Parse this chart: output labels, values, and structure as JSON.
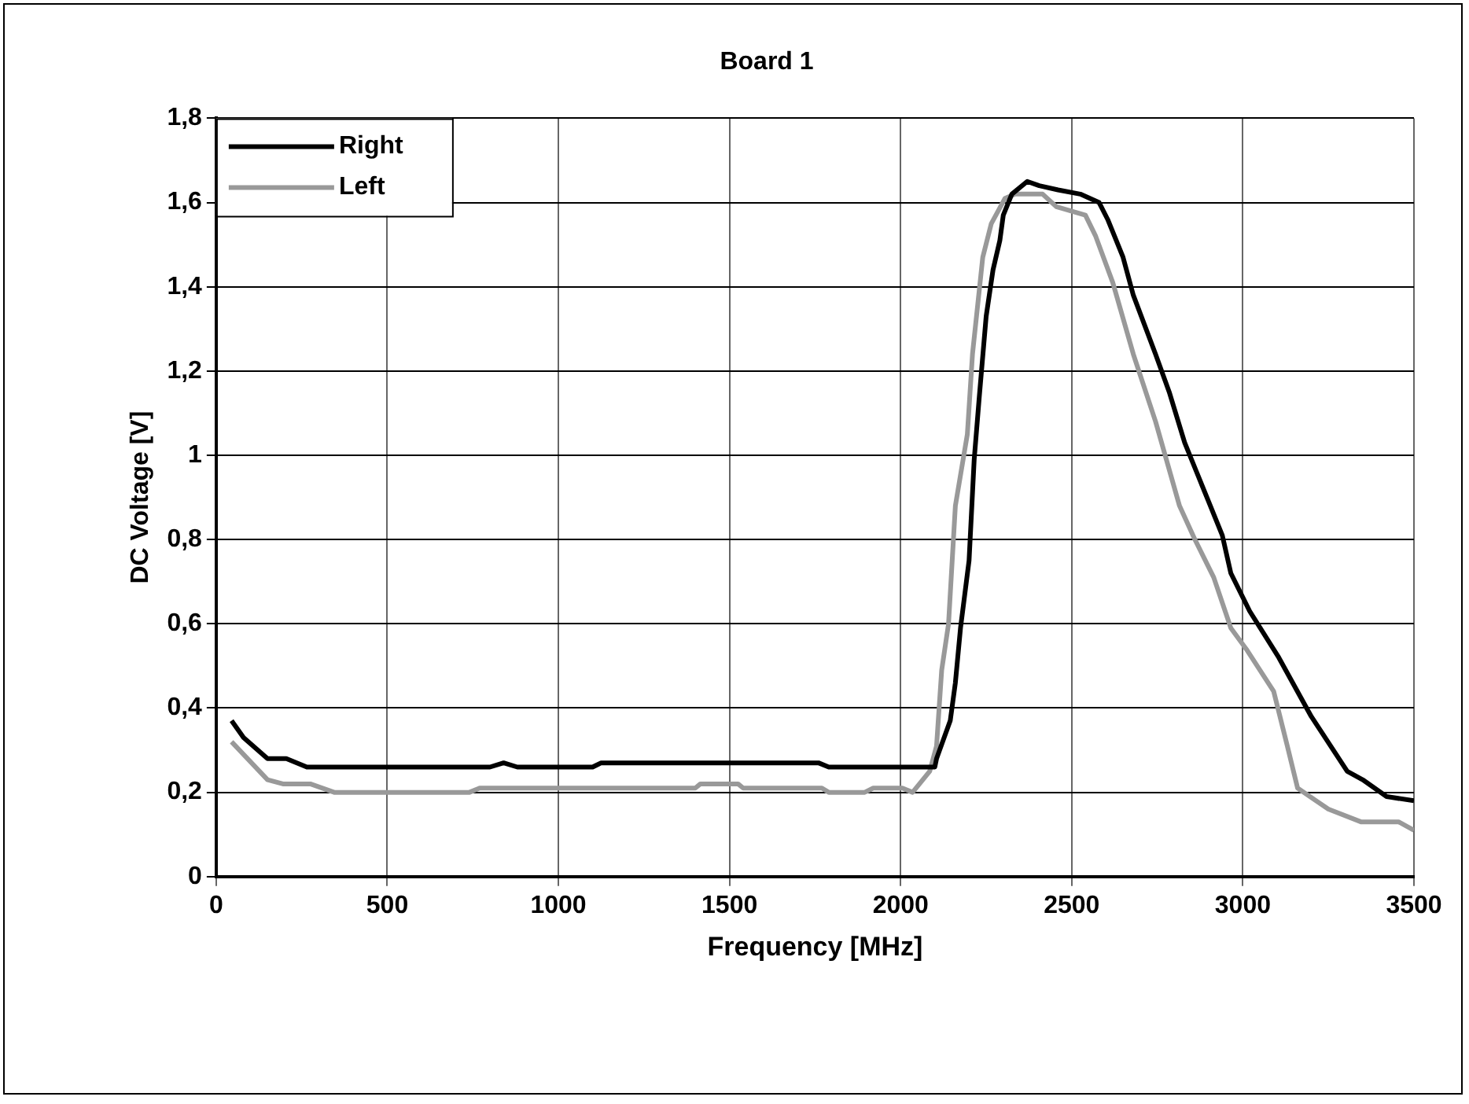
{
  "chart_data": {
    "type": "line",
    "title": "Board 1",
    "xlabel": "Frequency [MHz]",
    "ylabel": "DC Voltage [V]",
    "xlim": [
      0,
      3500
    ],
    "xticks": [
      0,
      500,
      1000,
      1500,
      2000,
      2500,
      3000,
      3500
    ],
    "ylim": [
      0,
      1.8
    ],
    "yticks": [
      0,
      {
        "value": 0.2,
        "label": "0,2"
      },
      {
        "value": 0.4,
        "label": "0,4"
      },
      {
        "value": 0.6,
        "label": "0,6"
      },
      {
        "value": 0.8,
        "label": "0,8"
      },
      1,
      {
        "value": 1.2,
        "label": "1,2"
      },
      {
        "value": 1.4,
        "label": "1,4"
      },
      {
        "value": 1.6,
        "label": "1,6"
      },
      {
        "value": 1.8,
        "label": "1,8"
      }
    ],
    "grid": true,
    "legend": "top left",
    "marker": "none",
    "line_style": "solid",
    "series": [
      {
        "name": "Right",
        "color": "#000000",
        "x": [
          45,
          80,
          150,
          205,
          265,
          800,
          840,
          880,
          1100,
          1125,
          1760,
          1790,
          2045,
          2100,
          2105,
          2145,
          2160,
          2175,
          2200,
          2215,
          2230,
          2250,
          2270,
          2290,
          2300,
          2325,
          2370,
          2405,
          2460,
          2525,
          2580,
          2605,
          2650,
          2680,
          2745,
          2785,
          2830,
          2900,
          2940,
          2965,
          3020,
          3105,
          3200,
          3305,
          3350,
          3420,
          3500
        ],
        "values": [
          0.37,
          0.33,
          0.28,
          0.28,
          0.26,
          0.26,
          0.27,
          0.26,
          0.26,
          0.27,
          0.27,
          0.26,
          0.26,
          0.26,
          0.28,
          0.37,
          0.46,
          0.59,
          0.75,
          0.99,
          1.14,
          1.33,
          1.44,
          1.51,
          1.57,
          1.62,
          1.65,
          1.64,
          1.63,
          1.62,
          1.6,
          1.56,
          1.47,
          1.38,
          1.24,
          1.15,
          1.03,
          0.89,
          0.81,
          0.72,
          0.63,
          0.52,
          0.38,
          0.25,
          0.23,
          0.19,
          0.18
        ]
      },
      {
        "name": "Left",
        "color": "#999999",
        "x": [
          45,
          150,
          195,
          275,
          345,
          740,
          770,
          1400,
          1415,
          1525,
          1540,
          1770,
          1790,
          1895,
          1920,
          2005,
          2035,
          2085,
          2105,
          2120,
          2140,
          2160,
          2195,
          2210,
          2240,
          2265,
          2305,
          2335,
          2415,
          2455,
          2540,
          2570,
          2620,
          2680,
          2745,
          2815,
          2860,
          2915,
          2965,
          3010,
          3090,
          3130,
          3160,
          3250,
          3345,
          3455,
          3500
        ],
        "values": [
          0.32,
          0.23,
          0.22,
          0.22,
          0.2,
          0.2,
          0.21,
          0.21,
          0.22,
          0.22,
          0.21,
          0.21,
          0.2,
          0.2,
          0.21,
          0.21,
          0.2,
          0.25,
          0.31,
          0.49,
          0.6,
          0.88,
          1.05,
          1.24,
          1.47,
          1.55,
          1.61,
          1.62,
          1.62,
          1.59,
          1.57,
          1.52,
          1.41,
          1.24,
          1.08,
          0.88,
          0.8,
          0.71,
          0.59,
          0.54,
          0.44,
          0.31,
          0.21,
          0.16,
          0.13,
          0.13,
          0.11
        ]
      }
    ]
  }
}
